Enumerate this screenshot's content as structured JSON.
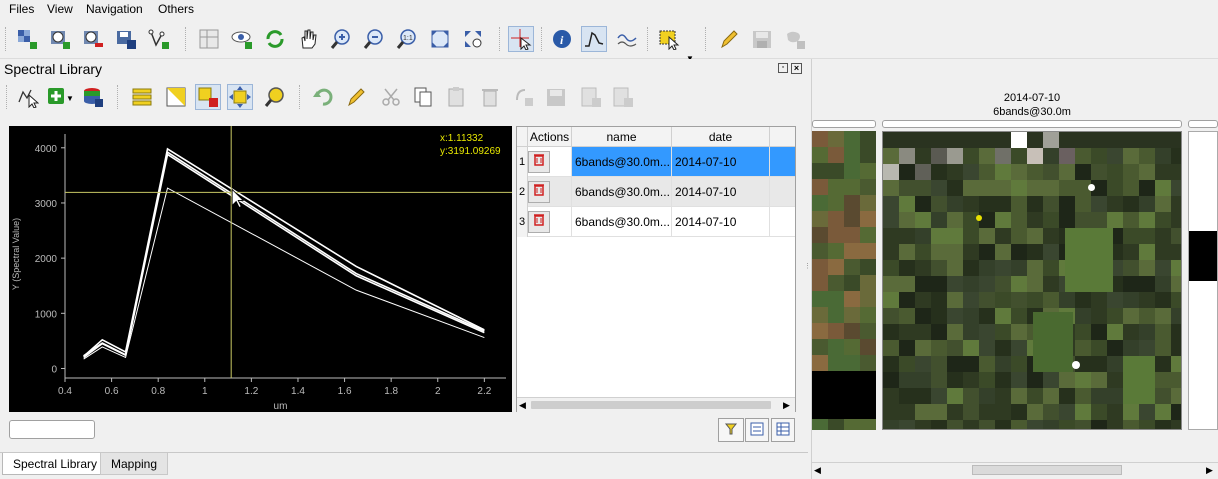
{
  "menu": {
    "files": "Files",
    "view": "View",
    "navigation": "Navigation",
    "others": "Others"
  },
  "main_toolbar": {
    "icons": [
      "add-raster-icon",
      "add-timeseries-icon",
      "remove-timeseries-icon",
      "save-timeseries-icon",
      "add-vector-icon",
      "map-layout-icon",
      "show-map-icon",
      "refresh-icon",
      "pan-icon",
      "zoom-in-icon",
      "zoom-out-icon",
      "zoom-1to1-icon",
      "zoom-full-icon",
      "zoom-pixel-icon",
      "select-location-icon",
      "identify-icon",
      "spectral-profile-icon",
      "temporal-profile-icon",
      "select-features-icon",
      "edit-icon",
      "save-edits-icon",
      "add-feature-icon"
    ]
  },
  "dock": {
    "title": "Spectral Library"
  },
  "spectral_toolbar": {
    "icons": [
      "profile-select-icon",
      "add-profile-icon",
      "import-library-icon",
      "select-all-icon",
      "invert-selection-icon",
      "remove-selection-icon",
      "pan-map-to-selection-icon",
      "zoom-to-selection-icon",
      "undo-icon",
      "edit-toggle-icon",
      "cut-icon",
      "copy-icon",
      "paste-icon",
      "delete-icon",
      "reload-icon",
      "save-icon",
      "add-field-icon",
      "remove-field-icon"
    ]
  },
  "chart_data": {
    "type": "line",
    "xlabel": "um",
    "ylabel": "Y (Spectral Value)",
    "xlim": [
      0.4,
      2.25
    ],
    "ylim": [
      -100,
      4250
    ],
    "xticks": [
      "0.4",
      "0.6",
      "0.8",
      "1",
      "1.2",
      "1.4",
      "1.6",
      "1.8",
      "2",
      "2.2"
    ],
    "xtick_values": [
      0.4,
      0.6,
      0.8,
      1.0,
      1.2,
      1.4,
      1.6,
      1.8,
      2.0,
      2.2
    ],
    "yticks": [
      "0",
      "1000",
      "2000",
      "3000",
      "4000"
    ],
    "ytick_values": [
      0,
      1000,
      2000,
      3000,
      4000
    ],
    "x": [
      0.48,
      0.56,
      0.66,
      0.84,
      1.65,
      2.2
    ],
    "series": [
      {
        "values": [
          220,
          520,
          300,
          3980,
          1850,
          700
        ]
      },
      {
        "values": [
          230,
          460,
          250,
          3920,
          1720,
          680
        ]
      },
      {
        "values": [
          200,
          450,
          240,
          3880,
          1680,
          650
        ]
      },
      {
        "values": [
          170,
          390,
          200,
          3270,
          1420,
          560
        ]
      }
    ],
    "crosshair": {
      "x": 1.11332,
      "y": 3191.09269
    },
    "coord_readout": {
      "x": "x:1.11332",
      "y": "y:3191.09269"
    },
    "line_color": "#ffffff",
    "crosshair_color": "#c8c864",
    "readout_color": "#e8e800",
    "background": "#000000"
  },
  "table": {
    "headers": {
      "actions": "Actions",
      "name": "name",
      "date": "date"
    },
    "rows": [
      {
        "num": "1",
        "name": "6bands@30.0m...",
        "date": "2014-07-10",
        "selected": true
      },
      {
        "num": "2",
        "name": "6bands@30.0m...",
        "date": "2014-07-10",
        "selected": false
      },
      {
        "num": "3",
        "name": "6bands@30.0m...",
        "date": "2014-07-10",
        "selected": false
      }
    ]
  },
  "bottom_tabs": {
    "spectral_library": "Spectral Library",
    "mapping": "Mapping"
  },
  "map_panel": {
    "date": "2014-07-10",
    "sensor": "6bands@30.0m"
  },
  "colors": {
    "selection": "#3399ff",
    "accent_yellow": "#e8e800",
    "delete_red": "#d02020"
  }
}
